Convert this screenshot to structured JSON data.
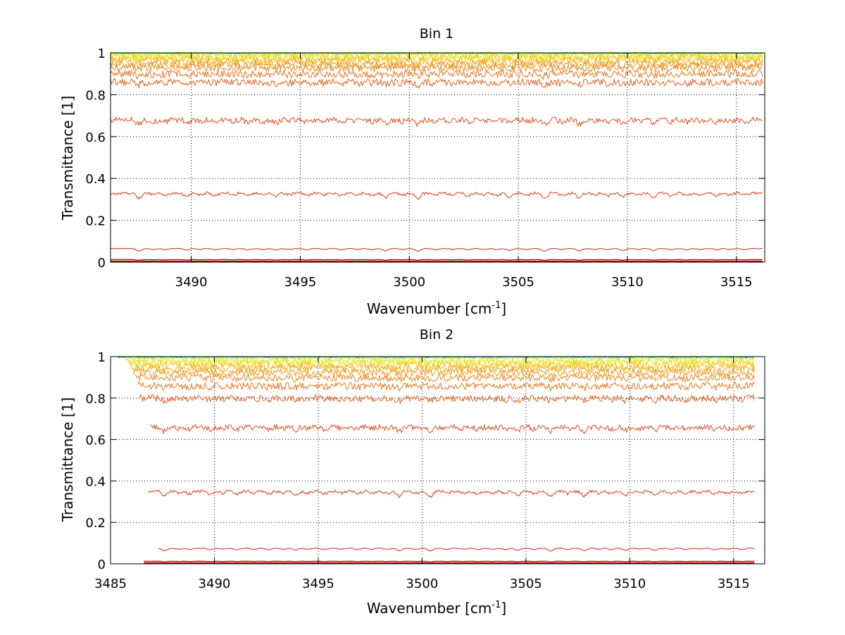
{
  "chart_data": [
    {
      "type": "line",
      "title": "Bin 1",
      "xlabel": "Wavenumber [cm",
      "xlabel_sup": "-1",
      "xlabel_close": "]",
      "ylabel": "Transmittance [1]",
      "xlim": [
        3486.3,
        3516.3
      ],
      "ylim": [
        0,
        1
      ],
      "grid": true,
      "xticks": [
        3490,
        3495,
        3500,
        3505,
        3510,
        3515
      ],
      "xtick_labels": [
        "3490",
        "3495",
        "3500",
        "3505",
        "3510",
        "3515"
      ],
      "yticks": [
        0,
        0.2,
        0.4,
        0.6,
        0.8,
        1
      ],
      "ytick_labels": [
        "0",
        "0.2",
        "0.4",
        "0.6",
        "0.8",
        "1"
      ],
      "x_start": 3486.3,
      "x_end": 3516.2,
      "series": [
        {
          "color": "#0b3dd6",
          "baseline": 0.998
        },
        {
          "color": "#27c9e8",
          "baseline": 0.997
        },
        {
          "color": "#7fe08a",
          "baseline": 0.996
        },
        {
          "color": "#d9f23f",
          "baseline": 0.99
        },
        {
          "color": "#f2e21b",
          "baseline": 0.985
        },
        {
          "color": "#f5c518",
          "baseline": 0.975
        },
        {
          "color": "#f2ac1a",
          "baseline": 0.96
        },
        {
          "color": "#ee9a1c",
          "baseline": 0.945
        },
        {
          "color": "#ea881e",
          "baseline": 0.93
        },
        {
          "color": "#e57520",
          "baseline": 0.9
        },
        {
          "color": "#e06222",
          "baseline": 0.86
        },
        {
          "color": "#dc5020",
          "baseline": 0.68
        },
        {
          "color": "#d43d1c",
          "baseline": 0.33
        },
        {
          "color": "#c92a18",
          "baseline": 0.065
        },
        {
          "color": "#bb1a14",
          "baseline": 0.012
        },
        {
          "color": "#a80f10",
          "baseline": 0.004
        }
      ]
    },
    {
      "type": "line",
      "title": "Bin 2",
      "xlabel": "Wavenumber [cm",
      "xlabel_sup": "-1",
      "xlabel_close": "]",
      "ylabel": "Transmittance [1]",
      "xlim": [
        3485,
        3516.5
      ],
      "ylim": [
        0,
        1
      ],
      "grid": true,
      "xticks": [
        3485,
        3490,
        3495,
        3500,
        3505,
        3510,
        3515
      ],
      "xtick_labels": [
        "3485",
        "3490",
        "3495",
        "3500",
        "3505",
        "3510",
        "3515"
      ],
      "yticks": [
        0,
        0.2,
        0.4,
        0.6,
        0.8,
        1
      ],
      "ytick_labels": [
        "0",
        "0.2",
        "0.4",
        "0.6",
        "0.8",
        "1"
      ],
      "x_end": 3516.0,
      "series": [
        {
          "color": "#0b3dd6",
          "baseline": 0.998,
          "x_start": 3485.3
        },
        {
          "color": "#27c9e8",
          "baseline": 0.997,
          "x_start": 3485.4
        },
        {
          "color": "#7fe08a",
          "baseline": 0.995,
          "x_start": 3485.5
        },
        {
          "color": "#d9f23f",
          "baseline": 0.985,
          "x_start": 3485.7
        },
        {
          "color": "#f2e21b",
          "baseline": 0.975,
          "x_start": 3485.8
        },
        {
          "color": "#f5c518",
          "baseline": 0.96,
          "x_start": 3485.9
        },
        {
          "color": "#f2ac1a",
          "baseline": 0.945,
          "x_start": 3486.0
        },
        {
          "color": "#ee9a1c",
          "baseline": 0.925,
          "x_start": 3486.1
        },
        {
          "color": "#ea881e",
          "baseline": 0.9,
          "x_start": 3486.2
        },
        {
          "color": "#e57520",
          "baseline": 0.86,
          "x_start": 3486.3
        },
        {
          "color": "#e06222",
          "baseline": 0.8,
          "x_start": 3486.4
        },
        {
          "color": "#dc5020",
          "baseline": 0.66,
          "x_start": 3486.9
        },
        {
          "color": "#d43d1c",
          "baseline": 0.35,
          "x_start": 3486.8
        },
        {
          "color": "#c92a18",
          "baseline": 0.075,
          "x_start": 3487.3
        },
        {
          "color": "#bb1a14",
          "baseline": 0.012,
          "x_start": 3486.6
        },
        {
          "color": "#a80f10",
          "baseline": 0.004,
          "x_start": 3486.6
        }
      ]
    }
  ],
  "absorption_lines": [
    [
      3487.6,
      0.55
    ],
    [
      3488.3,
      0.2
    ],
    [
      3488.8,
      0.25
    ],
    [
      3489.8,
      0.35
    ],
    [
      3490.4,
      0.2
    ],
    [
      3491.1,
      0.3
    ],
    [
      3491.9,
      0.2
    ],
    [
      3492.6,
      0.3
    ],
    [
      3493.3,
      0.25
    ],
    [
      3493.9,
      0.35
    ],
    [
      3494.5,
      0.2
    ],
    [
      3495.3,
      0.3
    ],
    [
      3496.1,
      0.2
    ],
    [
      3496.9,
      0.3
    ],
    [
      3497.6,
      0.2
    ],
    [
      3498.3,
      0.25
    ],
    [
      3498.9,
      0.55
    ],
    [
      3499.7,
      0.2
    ],
    [
      3500.4,
      0.6
    ],
    [
      3501.2,
      0.25
    ],
    [
      3502.0,
      0.2
    ],
    [
      3502.7,
      0.3
    ],
    [
      3503.4,
      0.2
    ],
    [
      3504.0,
      0.25
    ],
    [
      3504.6,
      0.45
    ],
    [
      3505.4,
      0.25
    ],
    [
      3506.2,
      0.6
    ],
    [
      3507.0,
      0.25
    ],
    [
      3507.8,
      0.55
    ],
    [
      3508.5,
      0.2
    ],
    [
      3509.1,
      0.3
    ],
    [
      3509.8,
      0.45
    ],
    [
      3510.5,
      0.2
    ],
    [
      3511.2,
      0.45
    ],
    [
      3512.0,
      0.25
    ],
    [
      3512.7,
      0.3
    ],
    [
      3513.4,
      0.2
    ],
    [
      3514.1,
      0.3
    ],
    [
      3514.7,
      0.2
    ],
    [
      3515.4,
      0.25
    ]
  ]
}
